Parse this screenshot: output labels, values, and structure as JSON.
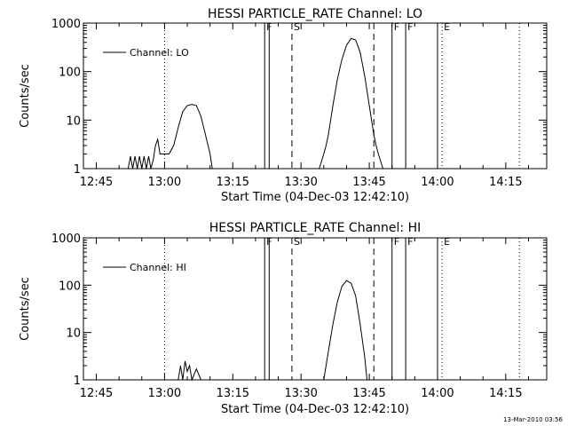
{
  "footer": {
    "timestamp": "13-Mar-2010 03:56"
  },
  "chart_data": [
    {
      "type": "line",
      "title": "HESSI PARTICLE_RATE Channel: LO",
      "xlabel": "Start Time (04-Dec-03 12:42:10)",
      "ylabel": "Counts/sec",
      "yscale": "log",
      "ylim": [
        1,
        1000
      ],
      "xlim": [
        "12:42:10",
        "14:24:00"
      ],
      "xticks": [
        "12:45",
        "13:00",
        "13:15",
        "13:30",
        "13:45",
        "14:00",
        "14:15"
      ],
      "yticks": [
        "1",
        "10",
        "100",
        "1000"
      ],
      "legend": {
        "entries": [
          "Channel: LO"
        ],
        "position": "top-left"
      },
      "series": [
        {
          "name": "Channel: LO",
          "points": [
            [
              "12:52:00",
              1
            ],
            [
              "12:52:30",
              1.8
            ],
            [
              "12:53:00",
              1
            ],
            [
              "12:53:30",
              1.8
            ],
            [
              "12:54:00",
              1
            ],
            [
              "12:54:30",
              1.8
            ],
            [
              "12:55:00",
              1
            ],
            [
              "12:55:30",
              1.8
            ],
            [
              "12:56:00",
              1
            ],
            [
              "12:56:30",
              1.8
            ],
            [
              "12:57:00",
              1
            ],
            [
              "12:57:30",
              1.5
            ],
            [
              "12:58:00",
              3
            ],
            [
              "12:58:30",
              4
            ],
            [
              "12:59:00",
              2
            ],
            [
              "13:00:00",
              2
            ],
            [
              "13:01:00",
              2
            ],
            [
              "13:02:00",
              3
            ],
            [
              "13:03:00",
              7
            ],
            [
              "13:04:00",
              15
            ],
            [
              "13:05:00",
              20
            ],
            [
              "13:06:00",
              21
            ],
            [
              "13:07:00",
              20
            ],
            [
              "13:08:00",
              12
            ],
            [
              "13:09:00",
              5
            ],
            [
              "13:10:00",
              2
            ],
            [
              "13:10:30",
              1
            ]
          ]
        },
        {
          "name": "Channel: LO",
          "points": [
            [
              "13:34:00",
              1
            ],
            [
              "13:35:00",
              2
            ],
            [
              "13:35:30",
              3
            ],
            [
              "13:36:00",
              5
            ],
            [
              "13:37:00",
              20
            ],
            [
              "13:38:00",
              70
            ],
            [
              "13:39:00",
              180
            ],
            [
              "13:40:00",
              350
            ],
            [
              "13:41:00",
              480
            ],
            [
              "13:42:00",
              450
            ],
            [
              "13:43:00",
              250
            ],
            [
              "13:44:00",
              80
            ],
            [
              "13:45:00",
              20
            ],
            [
              "13:46:00",
              5
            ],
            [
              "13:46:30",
              3
            ],
            [
              "13:47:00",
              2
            ],
            [
              "13:48:00",
              1
            ]
          ]
        }
      ],
      "markers": [
        {
          "label": "F",
          "time": "13:22:00",
          "style": "solid"
        },
        {
          "label": "S",
          "time": "13:28:00",
          "style": "dashed"
        },
        {
          "label": "F",
          "time": "13:50:00",
          "style": "solid"
        },
        {
          "label": "F",
          "time": "13:53:00",
          "style": "solid"
        },
        {
          "label": "E",
          "time": "14:01:00",
          "style": "dotted"
        }
      ],
      "extra_lines": [
        {
          "time": "13:00:00",
          "style": "dotted"
        },
        {
          "time": "13:23:00",
          "style": "solid"
        },
        {
          "time": "13:46:00",
          "style": "dashed"
        },
        {
          "time": "14:00:00",
          "style": "solid"
        },
        {
          "time": "14:18:00",
          "style": "dotted"
        }
      ]
    },
    {
      "type": "line",
      "title": "HESSI PARTICLE_RATE Channel: HI",
      "xlabel": "Start Time (04-Dec-03 12:42:10)",
      "ylabel": "Counts/sec",
      "yscale": "log",
      "ylim": [
        1,
        1000
      ],
      "xlim": [
        "12:42:10",
        "14:24:00"
      ],
      "xticks": [
        "12:45",
        "13:00",
        "13:15",
        "13:30",
        "13:45",
        "14:00",
        "14:15"
      ],
      "yticks": [
        "1",
        "10",
        "100",
        "1000"
      ],
      "legend": {
        "entries": [
          "Channel: HI"
        ],
        "position": "top-left"
      },
      "series": [
        {
          "name": "Channel: HI",
          "points": [
            [
              "13:03:00",
              1
            ],
            [
              "13:03:30",
              2
            ],
            [
              "13:04:00",
              1
            ],
            [
              "13:04:30",
              2.5
            ],
            [
              "13:05:00",
              1.5
            ],
            [
              "13:05:30",
              2
            ],
            [
              "13:06:00",
              1
            ],
            [
              "13:07:00",
              1.7
            ],
            [
              "13:08:00",
              1
            ]
          ]
        },
        {
          "name": "Channel: HI",
          "points": [
            [
              "13:35:00",
              1
            ],
            [
              "13:36:00",
              4
            ],
            [
              "13:37:00",
              15
            ],
            [
              "13:38:00",
              45
            ],
            [
              "13:39:00",
              95
            ],
            [
              "13:40:00",
              125
            ],
            [
              "13:41:00",
              110
            ],
            [
              "13:42:00",
              60
            ],
            [
              "13:43:00",
              15
            ],
            [
              "13:44:00",
              3
            ],
            [
              "13:44:30",
              1
            ]
          ]
        }
      ],
      "markers": [
        {
          "label": "F",
          "time": "13:22:00",
          "style": "solid"
        },
        {
          "label": "S",
          "time": "13:28:00",
          "style": "dashed"
        },
        {
          "label": "F",
          "time": "13:50:00",
          "style": "solid"
        },
        {
          "label": "F",
          "time": "13:53:00",
          "style": "solid"
        },
        {
          "label": "E",
          "time": "14:01:00",
          "style": "dotted"
        }
      ],
      "extra_lines": [
        {
          "time": "13:00:00",
          "style": "dotted"
        },
        {
          "time": "13:23:00",
          "style": "solid"
        },
        {
          "time": "13:46:00",
          "style": "dashed"
        },
        {
          "time": "14:00:00",
          "style": "solid"
        },
        {
          "time": "14:18:00",
          "style": "dotted"
        }
      ]
    }
  ]
}
